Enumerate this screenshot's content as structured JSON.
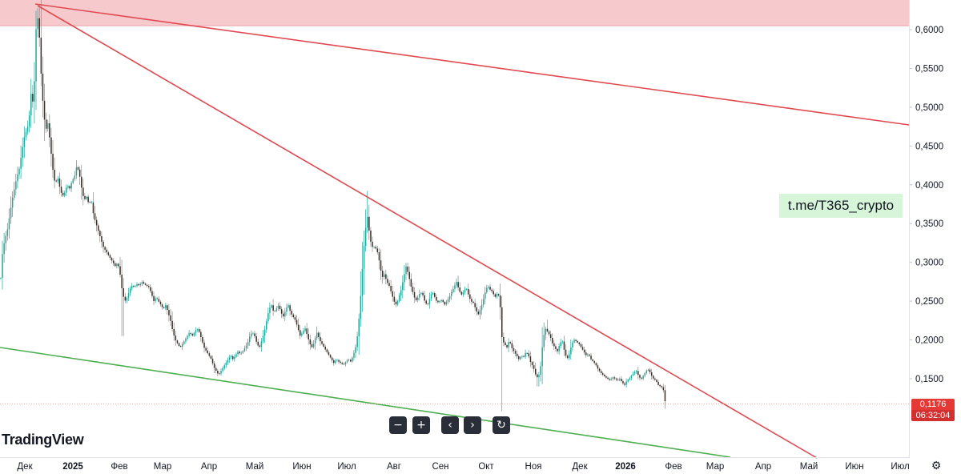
{
  "chart_data": {
    "type": "candlestick",
    "title": "",
    "xlabel": "",
    "ylabel": "",
    "ylim": [
      0.0,
      0.655
    ],
    "yticks": [
      "0,6000",
      "0,5500",
      "0,5000",
      "0,4500",
      "0,4000",
      "0,3500",
      "0,3000",
      "0,2500",
      "0,2000",
      "0,1500"
    ],
    "ytick_values": [
      0.6,
      0.55,
      0.5,
      0.45,
      0.4,
      0.35,
      0.3,
      0.25,
      0.2,
      0.15
    ],
    "xticks": [
      "Дек",
      "2025",
      "Фев",
      "Мар",
      "Апр",
      "Май",
      "Июн",
      "Июл",
      "Авг",
      "Сен",
      "Окт",
      "Ноя",
      "Дек",
      "2026",
      "Фев",
      "Мар",
      "Апр",
      "Май",
      "Июн",
      "Июл"
    ],
    "xtick_bold": [
      false,
      true,
      false,
      false,
      false,
      false,
      false,
      false,
      false,
      false,
      false,
      false,
      false,
      true,
      false,
      false,
      false,
      false,
      false,
      false
    ],
    "close_path": [
      [
        0,
        0.28
      ],
      [
        2,
        0.31
      ],
      [
        5,
        0.33
      ],
      [
        8,
        0.34
      ],
      [
        11,
        0.36
      ],
      [
        14,
        0.38
      ],
      [
        17,
        0.395
      ],
      [
        20,
        0.41
      ],
      [
        23,
        0.42
      ],
      [
        26,
        0.44
      ],
      [
        29,
        0.46
      ],
      [
        32,
        0.47
      ],
      [
        35,
        0.48
      ],
      [
        38,
        0.52
      ],
      [
        41,
        0.5
      ],
      [
        44,
        0.6
      ],
      [
        47,
        0.62
      ],
      [
        50,
        0.55
      ],
      [
        53,
        0.5
      ],
      [
        56,
        0.47
      ],
      [
        59,
        0.48
      ],
      [
        62,
        0.45
      ],
      [
        65,
        0.42
      ],
      [
        68,
        0.4
      ],
      [
        71,
        0.41
      ],
      [
        74,
        0.395
      ],
      [
        77,
        0.385
      ],
      [
        80,
        0.39
      ],
      [
        83,
        0.4
      ],
      [
        86,
        0.395
      ],
      [
        89,
        0.405
      ],
      [
        92,
        0.41
      ],
      [
        95,
        0.425
      ],
      [
        98,
        0.415
      ],
      [
        101,
        0.395
      ],
      [
        104,
        0.38
      ],
      [
        107,
        0.385
      ],
      [
        110,
        0.375
      ],
      [
        113,
        0.38
      ],
      [
        116,
        0.36
      ],
      [
        119,
        0.35
      ],
      [
        122,
        0.34
      ],
      [
        125,
        0.33
      ],
      [
        128,
        0.32
      ],
      [
        131,
        0.315
      ],
      [
        134,
        0.31
      ],
      [
        137,
        0.305
      ],
      [
        140,
        0.3
      ],
      [
        143,
        0.295
      ],
      [
        146,
        0.3
      ],
      [
        149,
        0.285
      ],
      [
        152,
        0.26
      ],
      [
        155,
        0.25
      ],
      [
        158,
        0.255
      ],
      [
        161,
        0.265
      ],
      [
        164,
        0.27
      ],
      [
        167,
        0.268
      ],
      [
        170,
        0.272
      ],
      [
        173,
        0.27
      ],
      [
        176,
        0.275
      ],
      [
        179,
        0.272
      ],
      [
        182,
        0.27
      ],
      [
        185,
        0.268
      ],
      [
        188,
        0.26
      ],
      [
        191,
        0.25
      ],
      [
        194,
        0.255
      ],
      [
        197,
        0.25
      ],
      [
        200,
        0.245
      ],
      [
        203,
        0.24
      ],
      [
        206,
        0.245
      ],
      [
        209,
        0.235
      ],
      [
        212,
        0.225
      ],
      [
        215,
        0.21
      ],
      [
        218,
        0.2
      ],
      [
        221,
        0.195
      ],
      [
        224,
        0.19
      ],
      [
        227,
        0.195
      ],
      [
        230,
        0.2
      ],
      [
        233,
        0.205
      ],
      [
        236,
        0.21
      ],
      [
        239,
        0.205
      ],
      [
        242,
        0.21
      ],
      [
        245,
        0.215
      ],
      [
        248,
        0.21
      ],
      [
        251,
        0.2
      ],
      [
        254,
        0.19
      ],
      [
        257,
        0.185
      ],
      [
        260,
        0.18
      ],
      [
        263,
        0.175
      ],
      [
        266,
        0.165
      ],
      [
        269,
        0.16
      ],
      [
        272,
        0.155
      ],
      [
        275,
        0.16
      ],
      [
        278,
        0.165
      ],
      [
        281,
        0.17
      ],
      [
        284,
        0.175
      ],
      [
        287,
        0.18
      ],
      [
        290,
        0.175
      ],
      [
        293,
        0.18
      ],
      [
        296,
        0.185
      ],
      [
        299,
        0.182
      ],
      [
        302,
        0.185
      ],
      [
        305,
        0.19
      ],
      [
        308,
        0.195
      ],
      [
        311,
        0.205
      ],
      [
        314,
        0.21
      ],
      [
        317,
        0.205
      ],
      [
        320,
        0.195
      ],
      [
        323,
        0.19
      ],
      [
        326,
        0.2
      ],
      [
        329,
        0.21
      ],
      [
        332,
        0.225
      ],
      [
        335,
        0.24
      ],
      [
        338,
        0.245
      ],
      [
        341,
        0.235
      ],
      [
        344,
        0.24
      ],
      [
        347,
        0.245
      ],
      [
        350,
        0.235
      ],
      [
        353,
        0.23
      ],
      [
        356,
        0.24
      ],
      [
        359,
        0.245
      ],
      [
        362,
        0.235
      ],
      [
        365,
        0.23
      ],
      [
        368,
        0.225
      ],
      [
        371,
        0.215
      ],
      [
        374,
        0.205
      ],
      [
        377,
        0.21
      ],
      [
        380,
        0.215
      ],
      [
        383,
        0.205
      ],
      [
        386,
        0.195
      ],
      [
        389,
        0.19
      ],
      [
        392,
        0.2
      ],
      [
        395,
        0.21
      ],
      [
        398,
        0.2
      ],
      [
        401,
        0.195
      ],
      [
        404,
        0.19
      ],
      [
        407,
        0.185
      ],
      [
        410,
        0.18
      ],
      [
        413,
        0.175
      ],
      [
        416,
        0.17
      ],
      [
        419,
        0.175
      ],
      [
        422,
        0.172
      ],
      [
        425,
        0.17
      ],
      [
        428,
        0.168
      ],
      [
        431,
        0.172
      ],
      [
        434,
        0.175
      ],
      [
        437,
        0.172
      ],
      [
        440,
        0.18
      ],
      [
        443,
        0.19
      ],
      [
        446,
        0.21
      ],
      [
        449,
        0.25
      ],
      [
        452,
        0.3
      ],
      [
        455,
        0.34
      ],
      [
        458,
        0.36
      ],
      [
        461,
        0.33
      ],
      [
        464,
        0.32
      ],
      [
        467,
        0.32
      ],
      [
        470,
        0.315
      ],
      [
        473,
        0.3
      ],
      [
        476,
        0.28
      ],
      [
        479,
        0.285
      ],
      [
        482,
        0.275
      ],
      [
        485,
        0.27
      ],
      [
        488,
        0.26
      ],
      [
        491,
        0.25
      ],
      [
        494,
        0.245
      ],
      [
        497,
        0.255
      ],
      [
        500,
        0.265
      ],
      [
        503,
        0.28
      ],
      [
        506,
        0.295
      ],
      [
        509,
        0.285
      ],
      [
        512,
        0.27
      ],
      [
        515,
        0.26
      ],
      [
        518,
        0.25
      ],
      [
        521,
        0.255
      ],
      [
        524,
        0.262
      ],
      [
        527,
        0.258
      ],
      [
        530,
        0.248
      ],
      [
        533,
        0.245
      ],
      [
        536,
        0.255
      ],
      [
        539,
        0.262
      ],
      [
        542,
        0.255
      ],
      [
        545,
        0.248
      ],
      [
        548,
        0.25
      ],
      [
        551,
        0.252
      ],
      [
        554,
        0.245
      ],
      [
        557,
        0.25
      ],
      [
        560,
        0.255
      ],
      [
        563,
        0.262
      ],
      [
        566,
        0.268
      ],
      [
        569,
        0.275
      ],
      [
        572,
        0.265
      ],
      [
        575,
        0.258
      ],
      [
        578,
        0.262
      ],
      [
        581,
        0.268
      ],
      [
        584,
        0.258
      ],
      [
        587,
        0.25
      ],
      [
        590,
        0.248
      ],
      [
        593,
        0.24
      ],
      [
        596,
        0.232
      ],
      [
        599,
        0.24
      ],
      [
        602,
        0.25
      ],
      [
        605,
        0.262
      ],
      [
        608,
        0.27
      ],
      [
        611,
        0.265
      ],
      [
        614,
        0.262
      ],
      [
        617,
        0.255
      ],
      [
        620,
        0.26
      ],
      [
        623,
        0.255
      ],
      [
        626,
        0.2
      ],
      [
        629,
        0.195
      ],
      [
        632,
        0.19
      ],
      [
        635,
        0.2
      ],
      [
        638,
        0.19
      ],
      [
        641,
        0.185
      ],
      [
        644,
        0.18
      ],
      [
        647,
        0.175
      ],
      [
        650,
        0.18
      ],
      [
        653,
        0.178
      ],
      [
        656,
        0.185
      ],
      [
        659,
        0.18
      ],
      [
        662,
        0.17
      ],
      [
        665,
        0.165
      ],
      [
        668,
        0.155
      ],
      [
        671,
        0.15
      ],
      [
        674,
        0.165
      ],
      [
        677,
        0.2
      ],
      [
        680,
        0.215
      ],
      [
        683,
        0.21
      ],
      [
        686,
        0.205
      ],
      [
        689,
        0.195
      ],
      [
        692,
        0.19
      ],
      [
        695,
        0.185
      ],
      [
        698,
        0.195
      ],
      [
        701,
        0.2
      ],
      [
        704,
        0.185
      ],
      [
        707,
        0.175
      ],
      [
        710,
        0.182
      ],
      [
        713,
        0.195
      ],
      [
        716,
        0.2
      ],
      [
        719,
        0.198
      ],
      [
        722,
        0.195
      ],
      [
        725,
        0.19
      ],
      [
        728,
        0.185
      ],
      [
        731,
        0.18
      ],
      [
        734,
        0.182
      ],
      [
        737,
        0.175
      ],
      [
        740,
        0.172
      ],
      [
        743,
        0.168
      ],
      [
        746,
        0.162
      ],
      [
        749,
        0.158
      ],
      [
        752,
        0.155
      ],
      [
        755,
        0.152
      ],
      [
        758,
        0.15
      ],
      [
        761,
        0.148
      ],
      [
        764,
        0.152
      ],
      [
        767,
        0.15
      ],
      [
        770,
        0.148
      ],
      [
        773,
        0.15
      ],
      [
        776,
        0.145
      ],
      [
        779,
        0.142
      ],
      [
        782,
        0.148
      ],
      [
        785,
        0.15
      ],
      [
        788,
        0.155
      ],
      [
        791,
        0.158
      ],
      [
        794,
        0.16
      ],
      [
        797,
        0.152
      ],
      [
        800,
        0.15
      ],
      [
        803,
        0.155
      ],
      [
        806,
        0.16
      ],
      [
        809,
        0.162
      ],
      [
        812,
        0.155
      ],
      [
        815,
        0.15
      ],
      [
        818,
        0.148
      ],
      [
        821,
        0.142
      ],
      [
        824,
        0.14
      ],
      [
        827,
        0.138
      ],
      [
        830,
        0.1176
      ]
    ],
    "wick_highs": [
      [
        47,
        0.628
      ],
      [
        458,
        0.392
      ],
      [
        683,
        0.226
      ]
    ],
    "wick_lows": [
      [
        152,
        0.205
      ],
      [
        626,
        0.108
      ],
      [
        671,
        0.14
      ]
    ],
    "last_price": "0,1176",
    "countdown": "06:32:04",
    "colors": {
      "up": "#26a69a",
      "down": "#3b2f2a",
      "resistance": "#e04a50",
      "support": "#4caf50",
      "zone": "#f6c9cd",
      "tag": "#e53935"
    }
  },
  "watermark": "t.me/T365_crypto",
  "logo": "TradingView",
  "toolbar": {
    "zoom_out": "−",
    "zoom_in": "+",
    "scroll_left": "‹",
    "scroll_right": "›",
    "reset": "↻"
  },
  "settings_icon": "gear-icon"
}
